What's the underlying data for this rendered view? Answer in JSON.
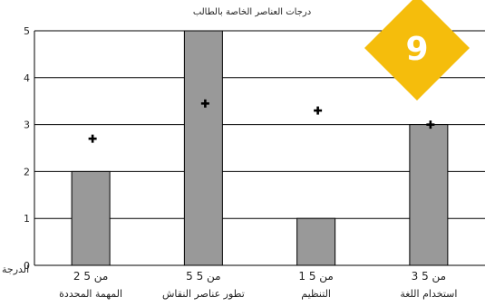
{
  "chart_data": {
    "type": "bar",
    "title": "درجات العناصر الخاصة بالطالب",
    "ylabel": "الدرجة",
    "ylim": [
      0,
      5
    ],
    "yticks": [
      "0",
      "1",
      "2",
      "3",
      "4",
      "5"
    ],
    "categories": [
      "المهمة المحددة",
      "تطور عناصر النقاش",
      "التنظيم",
      "استخدام اللغة"
    ],
    "score_labels": [
      "2 من 5",
      "5 من 5",
      "1 من 5",
      "3 من 5"
    ],
    "values": [
      2,
      5,
      1,
      3
    ],
    "markers": [
      2.7,
      3.45,
      3.3,
      3.0
    ],
    "grid": true,
    "bar_color": "#999999",
    "marker_symbol": "+"
  },
  "badge": {
    "number": "9",
    "color": "#f5bd0c"
  }
}
